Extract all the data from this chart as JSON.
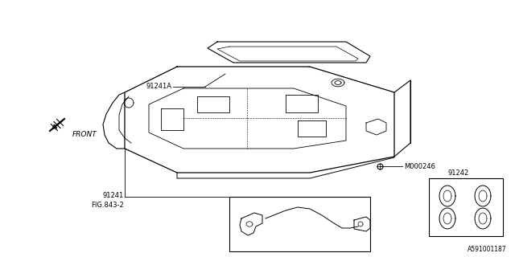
{
  "bg_color": "#ffffff",
  "line_color": "#000000",
  "text_color": "#000000",
  "fig_width": 6.4,
  "fig_height": 3.2,
  "dpi": 100,
  "labels": {
    "part_91241A": "91241A",
    "part_M000246": "M000246",
    "part_91241": "91241",
    "fig_843_2": "FIG.843-2",
    "part_91242": "91242",
    "front_label": "FRONT",
    "diagram_id": "A591001187"
  }
}
